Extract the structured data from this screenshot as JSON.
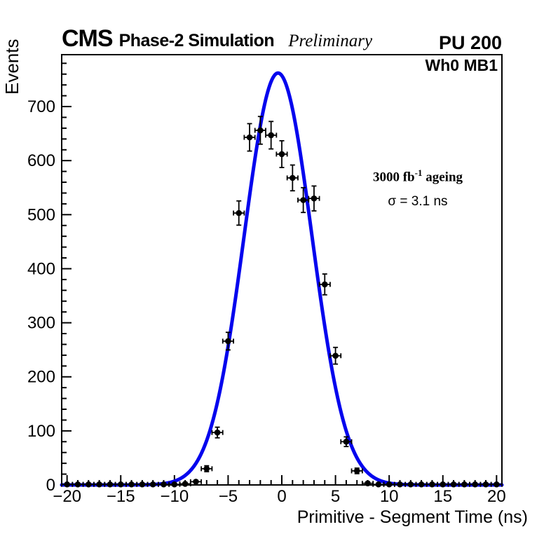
{
  "header": {
    "experiment": "CMS",
    "label": "Phase-2 Simulation",
    "sublabel": "Preliminary",
    "pileup": "PU 200"
  },
  "annotations": {
    "chamber": "Wh0 MB1",
    "ageing_prefix": "3000 fb",
    "ageing_sup": "-1",
    "ageing_suffix": " ageing",
    "sigma_text": "σ = 3.1 ns"
  },
  "chart_data": {
    "type": "scatter",
    "subtype": "histogram-points-with-gaussian-fit",
    "title": "",
    "xlabel": "Primitive - Segment Time (ns)",
    "ylabel": "Events",
    "xlim": [
      -20.5,
      20.5
    ],
    "ylim": [
      0,
      796
    ],
    "grid": false,
    "legend_position": "none",
    "bin_width": 1,
    "x_major_ticks": [
      -20,
      -15,
      -10,
      -5,
      0,
      5,
      10,
      15,
      20
    ],
    "x_tick_labels": [
      "−20",
      "−15",
      "−10",
      "−5",
      "0",
      "5",
      "10",
      "15",
      "20"
    ],
    "x_minor_step": 1,
    "y_major_ticks": [
      0,
      100,
      200,
      300,
      400,
      500,
      600,
      700
    ],
    "y_tick_labels": [
      "0",
      "100",
      "200",
      "300",
      "400",
      "500",
      "600",
      "700"
    ],
    "y_minor_step": 20,
    "points": [
      [
        -20,
        1
      ],
      [
        -19,
        1
      ],
      [
        -18,
        1
      ],
      [
        -17,
        1
      ],
      [
        -16,
        1
      ],
      [
        -15,
        1
      ],
      [
        -14,
        1
      ],
      [
        -13,
        1
      ],
      [
        -12,
        1
      ],
      [
        -11,
        1
      ],
      [
        -10,
        1
      ],
      [
        -9,
        2
      ],
      [
        -8,
        6
      ],
      [
        -7,
        30
      ],
      [
        -6,
        97
      ],
      [
        -5,
        266
      ],
      [
        -4,
        503
      ],
      [
        -3,
        643
      ],
      [
        -2,
        656
      ],
      [
        -1,
        647
      ],
      [
        0,
        612
      ],
      [
        1,
        568
      ],
      [
        2,
        527
      ],
      [
        3,
        530
      ],
      [
        4,
        371
      ],
      [
        5,
        239
      ],
      [
        6,
        80
      ],
      [
        7,
        26
      ],
      [
        8,
        3
      ],
      [
        9,
        1
      ],
      [
        10,
        1
      ],
      [
        11,
        1
      ],
      [
        12,
        1
      ],
      [
        13,
        1
      ],
      [
        14,
        1
      ],
      [
        15,
        1
      ],
      [
        16,
        1
      ],
      [
        17,
        1
      ],
      [
        18,
        1
      ],
      [
        19,
        1
      ],
      [
        20,
        1
      ]
    ],
    "x_error": 0.5,
    "y_error": "sqrt",
    "fit": {
      "type": "gaussian",
      "amplitude": 762,
      "mean": -0.35,
      "sigma": 3.15,
      "sigma_label_ns": 3.1
    },
    "colors": {
      "fit_curve": "#0505ee",
      "marker": "#000000",
      "axis": "#000000",
      "background": "#ffffff"
    }
  }
}
